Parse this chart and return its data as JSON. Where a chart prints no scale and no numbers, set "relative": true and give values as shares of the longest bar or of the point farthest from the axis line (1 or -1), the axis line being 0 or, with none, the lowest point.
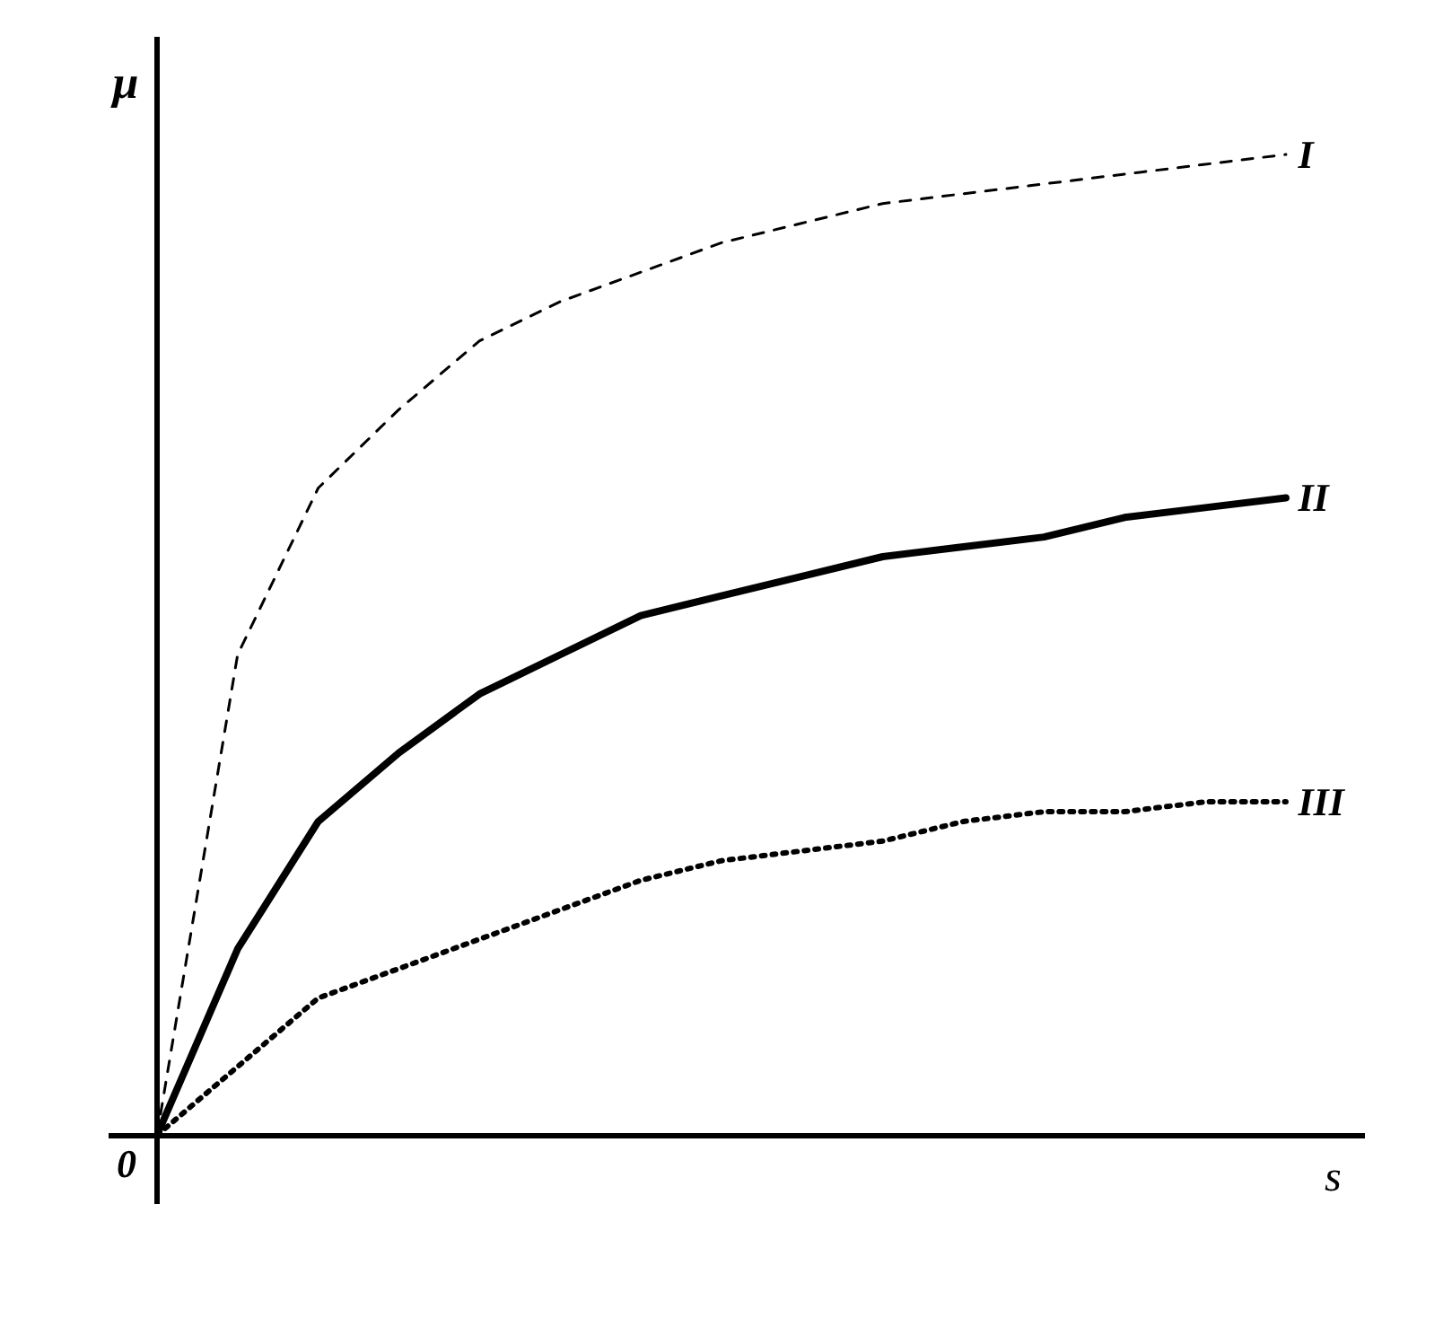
{
  "chart_data": {
    "type": "line",
    "relative": true,
    "xlabel": "s",
    "ylabel": "μ",
    "annotations": [
      "0"
    ],
    "categories": [
      null,
      null,
      null,
      null,
      null,
      null,
      null,
      null,
      null,
      null,
      null,
      null,
      null,
      null,
      null
    ],
    "series": [
      {
        "name": "I",
        "color": "#000000",
        "line_style": "dashed",
        "values": [
          0,
          0.49,
          0.66,
          0.74,
          0.81,
          0.85,
          0.88,
          0.91,
          0.93,
          0.95,
          0.96,
          0.97,
          0.98,
          0.99,
          1
        ]
      },
      {
        "name": "II",
        "color": "#000000",
        "line_style": "solid",
        "values": [
          0,
          0.19,
          0.32,
          0.39,
          0.45,
          0.49,
          0.53,
          0.55,
          0.57,
          0.59,
          0.6,
          0.61,
          0.63,
          0.64,
          0.65
        ]
      },
      {
        "name": "III",
        "color": "#000000",
        "line_style": "dotted",
        "values": [
          0,
          0.07,
          0.14,
          0.17,
          0.2,
          0.23,
          0.26,
          0.28,
          0.29,
          0.3,
          0.32,
          0.33,
          0.33,
          0.34,
          0.34
        ]
      }
    ]
  }
}
